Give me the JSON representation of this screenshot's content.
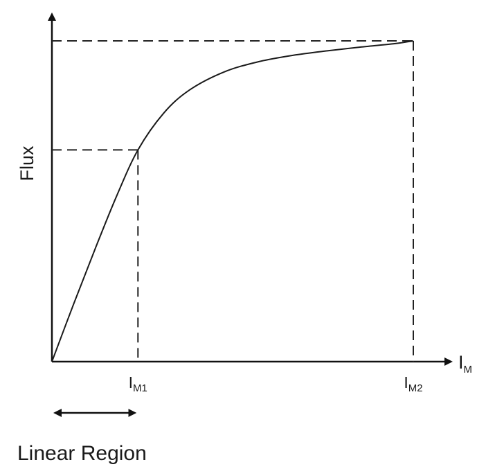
{
  "chart_data": {
    "type": "line",
    "ylabel": "Flux",
    "xlabel": {
      "main": "I",
      "sub": "M"
    },
    "x_ticks": [
      {
        "main": "I",
        "sub": "M1",
        "x": 1
      },
      {
        "main": "I",
        "sub": "M2",
        "x": 4.2
      }
    ],
    "xlim": [
      0,
      4.2
    ],
    "ylim": [
      0,
      1
    ],
    "series": [
      {
        "x": [
          0,
          0.25,
          0.5,
          0.75,
          1.0,
          1.3,
          1.6,
          2.0,
          2.4,
          2.8,
          3.2,
          3.6,
          4.0,
          4.2
        ],
        "y": [
          0,
          0.178,
          0.35,
          0.515,
          0.66,
          0.775,
          0.847,
          0.903,
          0.935,
          0.955,
          0.969,
          0.981,
          0.992,
          1.0
        ]
      }
    ],
    "guides": {
      "knee_point": {
        "x": 1,
        "y": 0.66
      },
      "saturation_point": {
        "x": 4.2,
        "y": 1.0
      },
      "style": "dashed"
    },
    "annotation": {
      "text": "Linear Region",
      "from_x": 0,
      "to_x": 1,
      "style": "double-arrow"
    }
  }
}
